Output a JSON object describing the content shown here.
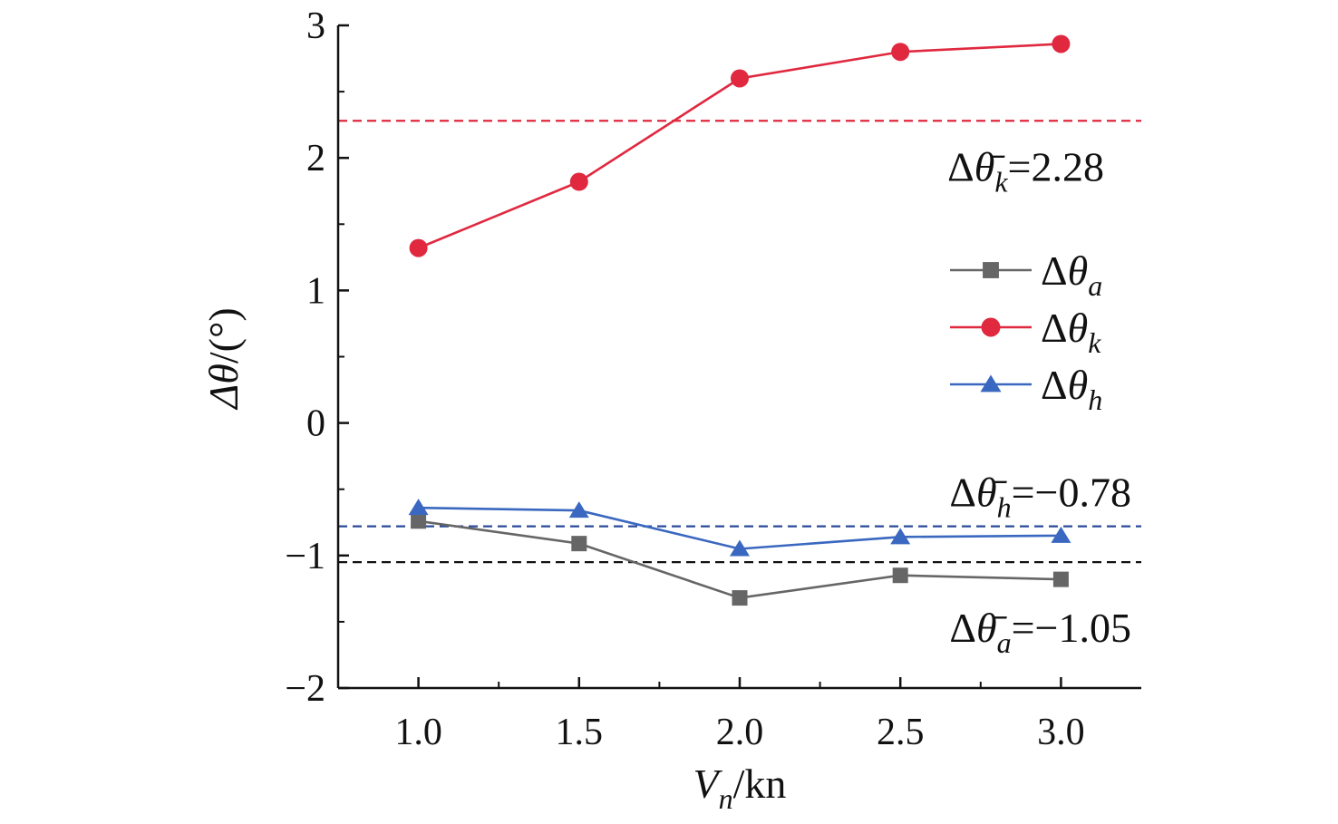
{
  "chart_data": {
    "type": "line",
    "x": [
      1.0,
      1.5,
      2.0,
      2.5,
      3.0
    ],
    "x_tick_labels": [
      "1.0",
      "1.5",
      "2.0",
      "2.5",
      "3.0"
    ],
    "y_tick_labels": [
      "3",
      "2",
      "1",
      "0",
      "−1",
      "−2"
    ],
    "xlim": [
      0.75,
      3.25
    ],
    "ylim": [
      -2,
      3
    ],
    "xlabel": {
      "symbol": "V",
      "sub": "n",
      "unit": "/kn"
    },
    "ylabel": {
      "symbol": "Δθ",
      "unit": "/(°)"
    },
    "grid": false,
    "legend_position": "right-middle",
    "series": [
      {
        "name": "Δθa",
        "label": {
          "base": "Δθ",
          "sub": "a"
        },
        "marker": "square",
        "color": "#666666",
        "values": [
          -0.74,
          -0.91,
          -1.32,
          -1.15,
          -1.18
        ]
      },
      {
        "name": "Δθk",
        "label": {
          "base": "Δθ",
          "sub": "k"
        },
        "marker": "circle",
        "color": "#e0283f",
        "values": [
          1.32,
          1.82,
          2.6,
          2.8,
          2.86
        ]
      },
      {
        "name": "Δθh",
        "label": {
          "base": "Δθ",
          "sub": "h"
        },
        "marker": "triangle",
        "color": "#3a68c0",
        "values": [
          -0.64,
          -0.66,
          -0.95,
          -0.86,
          -0.85
        ]
      }
    ],
    "reference_lines": [
      {
        "value": 2.28,
        "color": "#e0283f",
        "label": {
          "base": "Δθ̄",
          "sub": "k",
          "text": "=2.28"
        }
      },
      {
        "value": -0.78,
        "color": "#2a4a9a",
        "label": {
          "base": "Δθ̄",
          "sub": "h",
          "text": "=−0.78"
        }
      },
      {
        "value": -1.05,
        "color": "#111111",
        "label": {
          "base": "Δθ̄",
          "sub": "a",
          "text": "=−1.05"
        }
      }
    ]
  }
}
